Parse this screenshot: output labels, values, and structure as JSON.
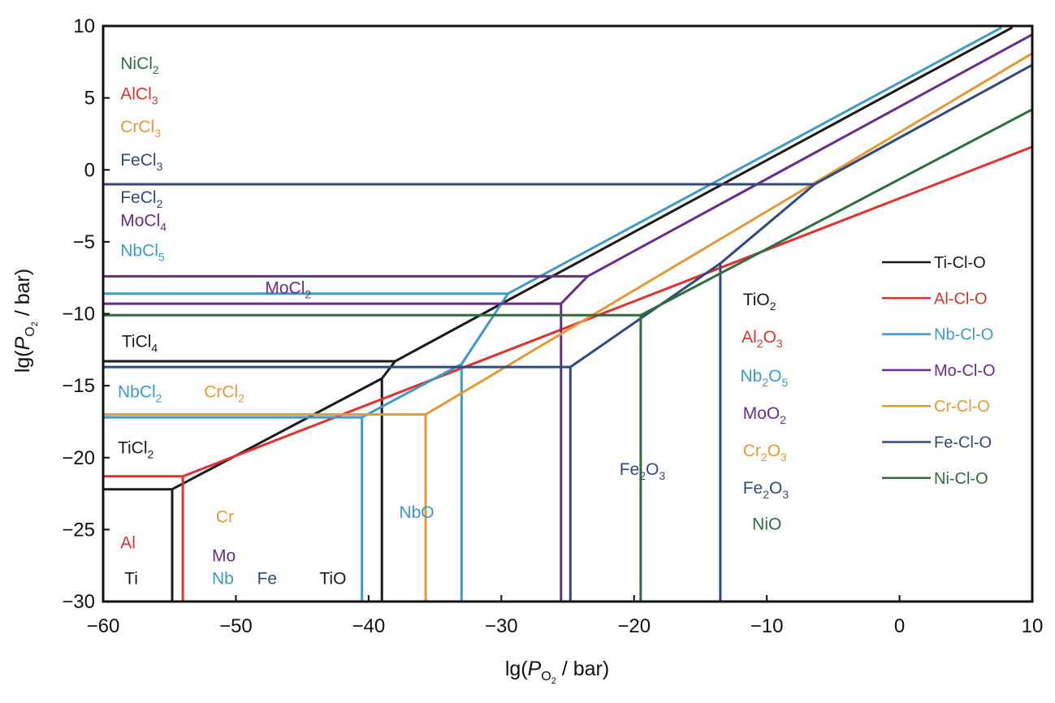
{
  "chart_data": {
    "type": "line",
    "title": "",
    "xlabel": {
      "prefix": "lg(",
      "var": "P",
      "sub": "O",
      "subsub": "2",
      "suffix": " / bar)"
    },
    "ylabel": {
      "prefix": "lg(",
      "var": "P",
      "sub": "O",
      "subsub": "2",
      "suffix": " / bar)"
    },
    "xlim": [
      -60,
      10
    ],
    "ylim": [
      -30,
      10
    ],
    "xticks": [
      -60,
      -50,
      -40,
      -30,
      -20,
      -10,
      0,
      10
    ],
    "yticks": [
      10,
      5,
      0,
      -5,
      -10,
      -15,
      -20,
      -25,
      -30
    ],
    "xtick_labels": [
      "−60",
      "−50",
      "−40",
      "−30",
      "−20",
      "−10",
      "0",
      "10"
    ],
    "ytick_labels": [
      "10",
      "5",
      "0",
      "−5",
      "−10",
      "−15",
      "−20",
      "−25",
      "−30"
    ],
    "grid": false,
    "legend_position": "right",
    "series": [
      {
        "name": "Ti-Cl-O",
        "color": "#1a1a1a",
        "segments": [
          [
            [
              -60,
              -22.2
            ],
            [
              -54.8,
              -22.2
            ],
            [
              -54.8,
              -30
            ]
          ],
          [
            [
              -54.8,
              -22.2
            ],
            [
              -39.0,
              -14.5
            ],
            [
              -39.0,
              -30
            ]
          ],
          [
            [
              -60,
              -13.3
            ],
            [
              -38.0,
              -13.3
            ]
          ],
          [
            [
              -39.0,
              -14.5
            ],
            [
              -38.0,
              -13.3
            ],
            [
              8.5,
              9.9
            ]
          ]
        ]
      },
      {
        "name": "Al-Cl-O",
        "color": "#e2302f",
        "segments": [
          [
            [
              -60,
              -21.3
            ],
            [
              -54.0,
              -21.3
            ],
            [
              -54.0,
              -30
            ]
          ],
          [
            [
              -54.0,
              -21.3
            ],
            [
              10,
              1.6
            ]
          ]
        ]
      },
      {
        "name": "Nb-Cl-O",
        "color": "#3d9ac9",
        "segments": [
          [
            [
              -60,
              -17.2
            ],
            [
              -40.5,
              -17.2
            ],
            [
              -40.5,
              -30
            ]
          ],
          [
            [
              -40.5,
              -17.2
            ],
            [
              -33.0,
              -13.5
            ],
            [
              -33.0,
              -30
            ]
          ],
          [
            [
              -33.0,
              -13.5
            ],
            [
              -29.5,
              -8.6
            ],
            [
              -60,
              -8.6
            ]
          ],
          [
            [
              -29.5,
              -8.6
            ],
            [
              7.7,
              9.9
            ]
          ]
        ]
      },
      {
        "name": "Mo-Cl-O",
        "color": "#6b2b8a",
        "segments": [
          [
            [
              -60,
              -9.3
            ],
            [
              -25.5,
              -9.3
            ],
            [
              -25.5,
              -30
            ]
          ],
          [
            [
              -60,
              -7.4
            ],
            [
              -23.5,
              -7.4
            ],
            [
              10,
              9.4
            ]
          ],
          [
            [
              -25.5,
              -9.3
            ],
            [
              -23.5,
              -7.4
            ]
          ]
        ]
      },
      {
        "name": "Cr-Cl-O",
        "color": "#e39a35",
        "segments": [
          [
            [
              -60,
              -17.0
            ],
            [
              -35.7,
              -17.0
            ],
            [
              -35.7,
              -30
            ]
          ],
          [
            [
              -35.7,
              -17.0
            ],
            [
              10,
              8.1
            ]
          ]
        ]
      },
      {
        "name": "Fe-Cl-O",
        "color": "#2f4a7c",
        "segments": [
          [
            [
              -60,
              -13.7
            ],
            [
              -24.8,
              -13.7
            ],
            [
              -24.8,
              -30
            ]
          ],
          [
            [
              -24.8,
              -13.7
            ],
            [
              -13.5,
              -6.5
            ],
            [
              -13.5,
              -30
            ]
          ],
          [
            [
              -13.5,
              -6.5
            ],
            [
              -6.4,
              -1.0
            ],
            [
              -60,
              -1.0
            ]
          ],
          [
            [
              -6.4,
              -1.0
            ],
            [
              10,
              7.3
            ]
          ]
        ]
      },
      {
        "name": "Ni-Cl-O",
        "color": "#2d6e3e",
        "segments": [
          [
            [
              -60,
              -10.1
            ],
            [
              -19.5,
              -10.1
            ],
            [
              -19.5,
              -30
            ]
          ],
          [
            [
              -19.5,
              -10.1
            ],
            [
              10,
              4.2
            ]
          ]
        ]
      }
    ],
    "annotations": [
      {
        "parts": [
          [
            "NiCl",
            ""
          ],
          [
            "2",
            "sub"
          ]
        ],
        "color": "#2d6e3e",
        "x": -58.7,
        "y": 7.0
      },
      {
        "parts": [
          [
            "AlCl",
            ""
          ],
          [
            "3",
            "sub"
          ]
        ],
        "color": "#e2302f",
        "x": -58.7,
        "y": 4.9
      },
      {
        "parts": [
          [
            "CrCl",
            ""
          ],
          [
            "3",
            "sub"
          ]
        ],
        "color": "#e39a35",
        "x": -58.7,
        "y": 2.6
      },
      {
        "parts": [
          [
            "FeCl",
            ""
          ],
          [
            "3",
            "sub"
          ]
        ],
        "color": "#2f4a7c",
        "x": -58.7,
        "y": 0.3
      },
      {
        "parts": [
          [
            "FeCl",
            ""
          ],
          [
            "2",
            "sub"
          ]
        ],
        "color": "#2f4a7c",
        "x": -58.7,
        "y": -2.3
      },
      {
        "parts": [
          [
            "MoCl",
            ""
          ],
          [
            "4",
            "sub"
          ]
        ],
        "color": "#6b2b8a",
        "x": -58.7,
        "y": -3.9
      },
      {
        "parts": [
          [
            "NbCl",
            ""
          ],
          [
            "5",
            "sub"
          ]
        ],
        "color": "#3d9ac9",
        "x": -58.7,
        "y": -6.0
      },
      {
        "parts": [
          [
            "MoCl",
            ""
          ],
          [
            "2",
            "sub"
          ]
        ],
        "color": "#6b2b8a",
        "x": -47.8,
        "y": -8.6
      },
      {
        "parts": [
          [
            "TiCl",
            ""
          ],
          [
            "4",
            "sub"
          ]
        ],
        "color": "#1a1a1a",
        "x": -58.6,
        "y": -12.3
      },
      {
        "parts": [
          [
            "NbCl",
            ""
          ],
          [
            "2",
            "sub"
          ]
        ],
        "color": "#3d9ac9",
        "x": -58.9,
        "y": -15.8
      },
      {
        "parts": [
          [
            "CrCl",
            ""
          ],
          [
            "2",
            "sub"
          ]
        ],
        "color": "#e39a35",
        "x": -52.4,
        "y": -15.8
      },
      {
        "parts": [
          [
            "TiCl",
            ""
          ],
          [
            "2",
            "sub"
          ]
        ],
        "color": "#1a1a1a",
        "x": -58.9,
        "y": -19.7
      },
      {
        "parts": [
          [
            "Al",
            ""
          ]
        ],
        "color": "#e2302f",
        "x": -58.7,
        "y": -26.3
      },
      {
        "parts": [
          [
            "Cr",
            ""
          ]
        ],
        "color": "#e39a35",
        "x": -51.5,
        "y": -24.5
      },
      {
        "parts": [
          [
            "Mo",
            ""
          ]
        ],
        "color": "#6b2b8a",
        "x": -51.8,
        "y": -27.2
      },
      {
        "parts": [
          [
            "Ti",
            ""
          ]
        ],
        "color": "#1a1a1a",
        "x": -58.4,
        "y": -28.8
      },
      {
        "parts": [
          [
            "Nb",
            ""
          ]
        ],
        "color": "#3d9ac9",
        "x": -51.8,
        "y": -28.8
      },
      {
        "parts": [
          [
            "Fe",
            ""
          ]
        ],
        "color": "#2f4a7c",
        "x": -48.4,
        "y": -28.8
      },
      {
        "parts": [
          [
            "TiO",
            ""
          ]
        ],
        "color": "#1a1a1a",
        "x": -43.7,
        "y": -28.8
      },
      {
        "parts": [
          [
            "NbO",
            ""
          ]
        ],
        "color": "#3d9ac9",
        "x": -37.7,
        "y": -24.2
      },
      {
        "parts": [
          [
            "Fe",
            ""
          ],
          [
            "2",
            "sub"
          ],
          [
            "O",
            ""
          ],
          [
            "3",
            "sub"
          ]
        ],
        "color": "#2f4a7c",
        "x": -21.1,
        "y": -21.2
      },
      {
        "parts": [
          [
            "TiO",
            ""
          ],
          [
            "2",
            "sub"
          ]
        ],
        "color": "#1a1a1a",
        "x": -11.8,
        "y": -9.4
      },
      {
        "parts": [
          [
            "Al",
            ""
          ],
          [
            "2",
            "sub"
          ],
          [
            "O",
            ""
          ],
          [
            "3",
            "sub"
          ]
        ],
        "color": "#e2302f",
        "x": -11.9,
        "y": -12.0
      },
      {
        "parts": [
          [
            "Nb",
            ""
          ],
          [
            "2",
            "sub"
          ],
          [
            "O",
            ""
          ],
          [
            "5",
            "sub"
          ]
        ],
        "color": "#3d9ac9",
        "x": -12.0,
        "y": -14.7
      },
      {
        "parts": [
          [
            "MoO",
            ""
          ],
          [
            "2",
            "sub"
          ]
        ],
        "color": "#6b2b8a",
        "x": -11.8,
        "y": -17.3
      },
      {
        "parts": [
          [
            "Cr",
            ""
          ],
          [
            "2",
            "sub"
          ],
          [
            "O",
            ""
          ],
          [
            "3",
            "sub"
          ]
        ],
        "color": "#e39a35",
        "x": -11.8,
        "y": -19.9
      },
      {
        "parts": [
          [
            "Fe",
            ""
          ],
          [
            "2",
            "sub"
          ],
          [
            "O",
            ""
          ],
          [
            "3",
            "sub"
          ]
        ],
        "color": "#2f4a7c",
        "x": -11.8,
        "y": -22.5
      },
      {
        "parts": [
          [
            "NiO",
            ""
          ]
        ],
        "color": "#2d6e3e",
        "x": -11.1,
        "y": -25.0
      }
    ]
  }
}
